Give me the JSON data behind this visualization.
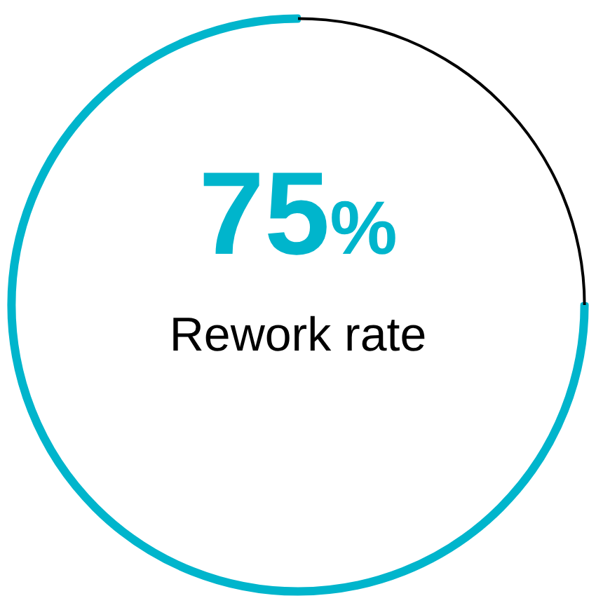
{
  "chart_data": {
    "type": "donut",
    "categories": [
      "Rework rate",
      null
    ],
    "values": [
      75,
      25
    ],
    "colors": [
      "#00b5cc",
      "#000000"
    ],
    "value_labels": [
      "75%",
      null
    ],
    "legend": false
  }
}
